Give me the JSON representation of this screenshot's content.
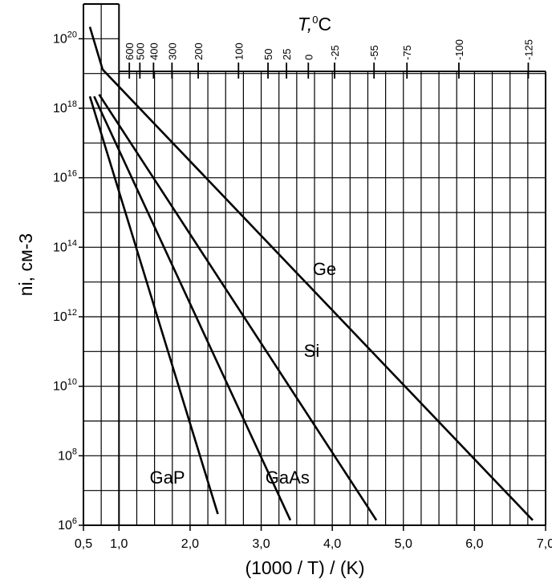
{
  "chart_data": {
    "type": "line",
    "title": "",
    "xlabel": "(1000 / T) / (K)",
    "ylabel": "ni, см-3",
    "y_scale": "log",
    "xlim": [
      0.5,
      7.0
    ],
    "ylim": [
      1000000.0,
      1e+21
    ],
    "x_ticks": [
      0.5,
      1.0,
      2.0,
      3.0,
      4.0,
      5.0,
      6.0,
      7.0
    ],
    "x_tick_labels": [
      "0,5",
      "1,0",
      "2,0",
      "3,0",
      "4,0",
      "5,0",
      "6,0",
      "7,0"
    ],
    "y_tick_base": "10",
    "y_tick_exponents": [
      "6",
      "8",
      "10",
      "12",
      "14",
      "16",
      "18",
      "20"
    ],
    "grid": true,
    "top_axis": {
      "label_main": "T,",
      "label_sup": "0",
      "label_unit": "C",
      "ticks_celsius": [
        600,
        500,
        400,
        300,
        200,
        100,
        50,
        25,
        0,
        -25,
        -55,
        -75,
        -100,
        -125
      ],
      "tick_labels": [
        "600",
        "500",
        "400",
        "300",
        "200",
        "100",
        "50",
        "25",
        "0",
        "-25",
        "-55",
        "-75",
        "-100",
        "-125"
      ]
    },
    "series": [
      {
        "name": "Ge",
        "x": [
          0.77,
          6.82
        ],
        "y": [
          1.3e+19,
          1400000.0
        ]
      },
      {
        "name": "Si",
        "x": [
          0.72,
          4.62
        ],
        "y": [
          2.5e+18,
          1400000.0
        ]
      },
      {
        "name": "GaAs",
        "x": [
          0.65,
          3.41
        ],
        "y": [
          2.2e+18,
          1400000.0
        ]
      },
      {
        "name": "GaP",
        "x": [
          0.59,
          2.39
        ],
        "y": [
          2.2e+18,
          2100000.0
        ]
      }
    ],
    "extra_segment": {
      "x": [
        0.59,
        0.77
      ],
      "y": [
        2.2e+20,
        1.3e+19
      ]
    },
    "annotations": [
      "Ge",
      "Si",
      "GaAs",
      "GaP"
    ]
  }
}
